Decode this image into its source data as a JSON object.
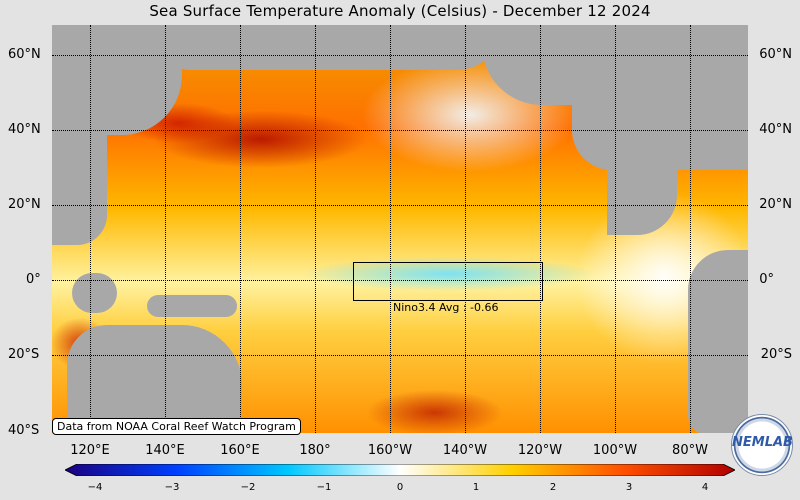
{
  "title": "Sea Surface Temperature Anomaly (Celsius) - December 12 2024",
  "nino": {
    "label": "Nino3.4 Avg : -0.66"
  },
  "credit": "Data from NOAA Coral Reef Watch Program",
  "logo": {
    "text": "NEMLAB"
  },
  "lat_labels": [
    "60°N",
    "40°N",
    "20°N",
    "0°",
    "20°S",
    "40°S"
  ],
  "lon_labels": [
    "120°E",
    "140°E",
    "160°E",
    "180°",
    "160°W",
    "140°W",
    "120°W",
    "100°W",
    "80°W"
  ],
  "colorbar": {
    "ticks": [
      "−4",
      "−3",
      "−2",
      "−1",
      "0",
      "1",
      "2",
      "3",
      "4"
    ],
    "colors": [
      "#1a0080",
      "#0040ff",
      "#00c8ff",
      "#ffffff",
      "#ffd000",
      "#ff5000",
      "#b00000"
    ]
  }
}
